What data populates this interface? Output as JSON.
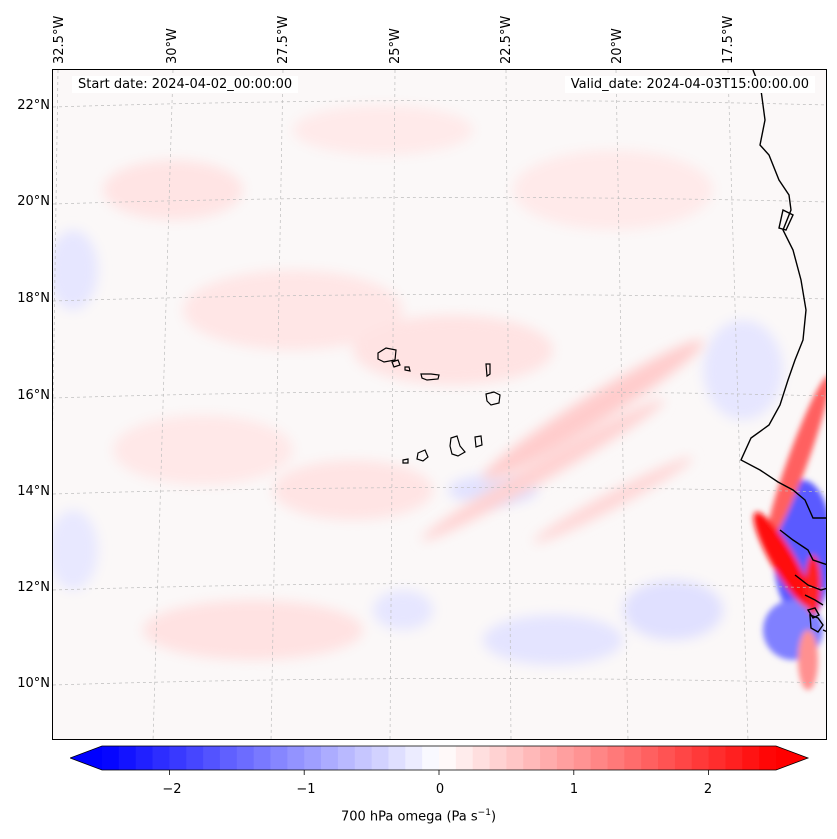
{
  "stamps": {
    "start": "Start date: 2024-04-02_00:00:00",
    "valid": "Valid_date: 2024-04-03T15:00:00.00"
  },
  "lat_labels": [
    "22°N",
    "20°N",
    "18°N",
    "16°N",
    "14°N",
    "12°N",
    "10°N"
  ],
  "lon_labels": [
    "32.5°W",
    "30°W",
    "27.5°W",
    "25°W",
    "22.5°W",
    "20°W",
    "17.5°W"
  ],
  "colorbar": {
    "title_main": "700 hPa omega (Pa s",
    "title_exp": "−1",
    "title_close": ")",
    "ticks": [
      "−2",
      "−1",
      "0",
      "1",
      "2"
    ],
    "tick_values": [
      -2,
      -1,
      0,
      1,
      2
    ],
    "range": [
      -2.5,
      2.5
    ],
    "colors": {
      "neg": "#0000ff",
      "zero": "#ffffff",
      "pos": "#ff0000"
    }
  }
}
